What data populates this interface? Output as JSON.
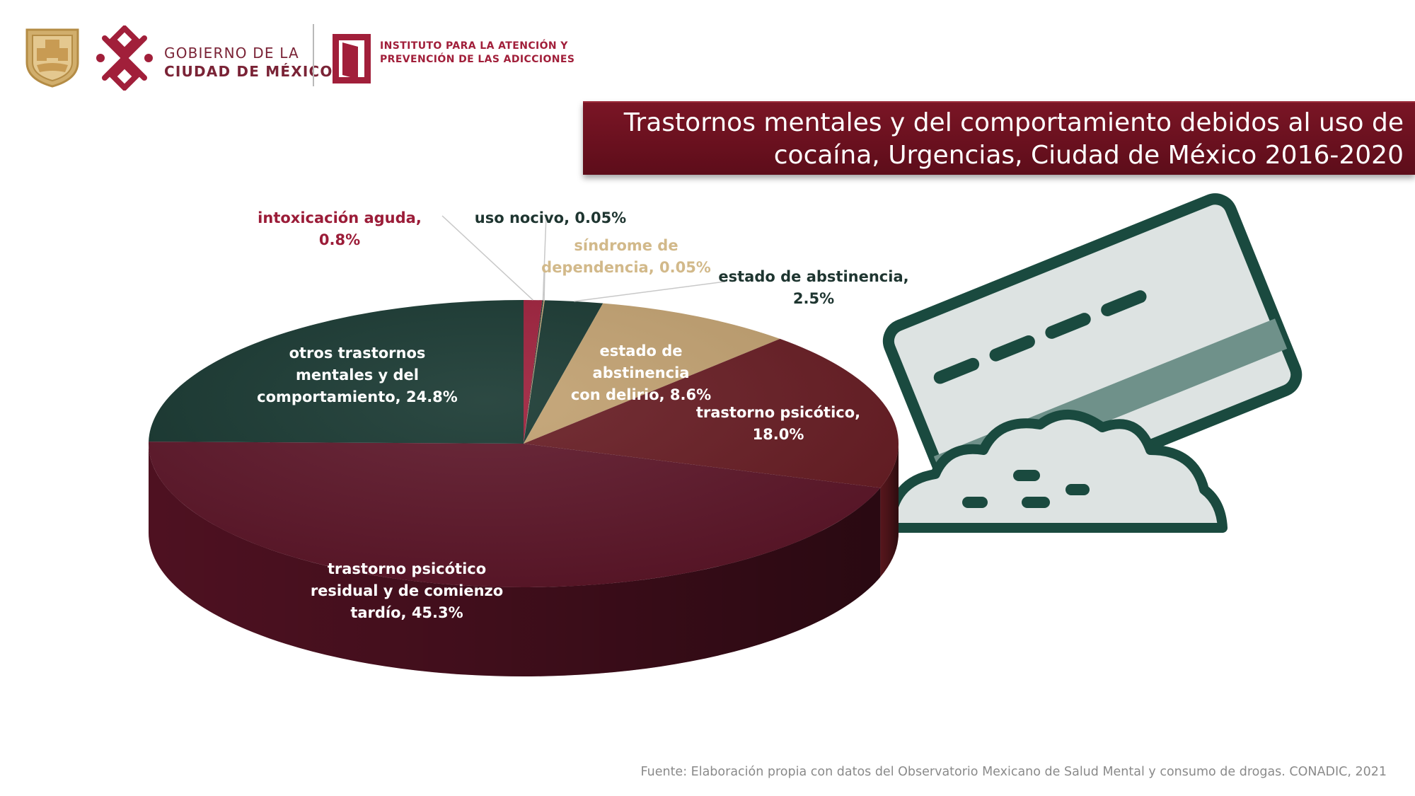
{
  "header": {
    "gov_line1": "GOBIERNO DE LA",
    "gov_line2": "CIUDAD DE MÉXICO",
    "iapa_line1": "INSTITUTO PARA LA ATENCIÓN Y",
    "iapa_line2": "PREVENCIÓN DE LAS ADICCIONES"
  },
  "title_line1": "Trastornos mentales y del comportamiento debidos al uso de",
  "title_line2": "cocaína, Urgencias, Ciudad de México 2016-2020",
  "source": "Fuente: Elaboración propia con datos del Observatorio Mexicano de Salud Mental y consumo de drogas. CONADIC, 2021",
  "colors": {
    "wine": "#5c1427",
    "dark_green": "#15352e",
    "tan": "#c1a06f",
    "crimson": "#9b1c38",
    "brown_red": "#661a21",
    "title_bg": "#6d1220"
  },
  "icons": [
    "cdmx-shield-icon",
    "cdmx-logo-icon",
    "iapa-logo-icon",
    "credit-card-icon",
    "powder-pile-icon"
  ],
  "chart_data": {
    "type": "pie",
    "title": "Trastornos mentales y del comportamiento debidos al uso de cocaína, Urgencias, Ciudad de México 2016-2020",
    "slices": [
      {
        "label": "intoxicación aguda",
        "value": 0.8,
        "color": "#9b1c38"
      },
      {
        "label": "uso nocivo",
        "value": 0.05,
        "color": "#1e3530"
      },
      {
        "label": "síndrome de dependencia",
        "value": 0.05,
        "color": "#c1a06f"
      },
      {
        "label": "estado de abstinencia",
        "value": 2.5,
        "color": "#15352e"
      },
      {
        "label": "estado de abstinencia con delirio",
        "value": 8.6,
        "color": "#c1a06f"
      },
      {
        "label": "trastorno psicótico",
        "value": 18.0,
        "color": "#661a21"
      },
      {
        "label": "trastorno psicótico residual y de comienzo tardío",
        "value": 45.3,
        "color": "#5c1427"
      },
      {
        "label": "otros trastornos mentales y del comportamiento",
        "value": 24.8,
        "color": "#15352e"
      }
    ],
    "labels": {
      "intoxicacion": "intoxicación aguda, 0.8%",
      "uso_nocivo": "uso nocivo, 0.05%",
      "sindrome_l1": "síndrome de",
      "sindrome_l2": "dependencia, 0.05%",
      "abstinencia_l1": "estado de abstinencia,",
      "abstinencia_l2": "2.5%",
      "delirio_l1": "estado de abstinencia",
      "delirio_l2": "con delirio, 8.6%",
      "psicotico_l1": "trastorno psicótico,",
      "psicotico_l2": "18.0%",
      "residual_l1": "trastorno psicótico",
      "residual_l2": "residual y de comienzo",
      "residual_l3": "tardío, 45.3%",
      "otros_l1": "otros trastornos",
      "otros_l2": "mentales y del",
      "otros_l3": "comportamiento, 24.8%"
    }
  }
}
